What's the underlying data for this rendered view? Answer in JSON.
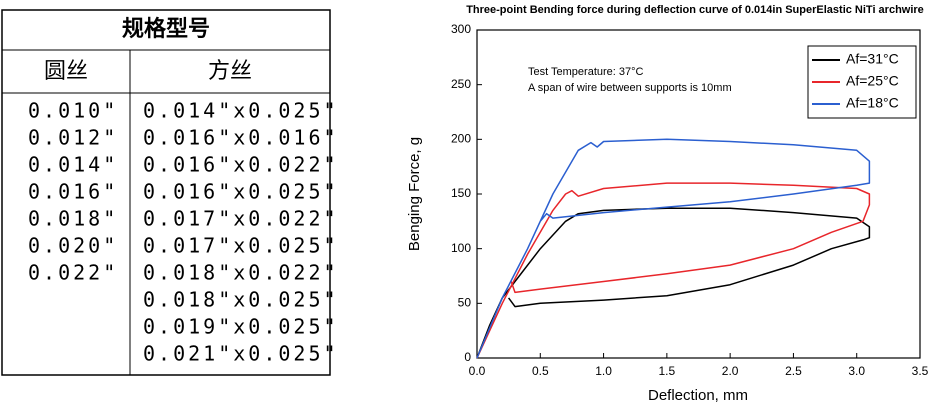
{
  "table": {
    "header": "规格型号",
    "columns": [
      "圆丝",
      "方丝"
    ],
    "round": [
      "0.010\"",
      "0.012\"",
      "0.014\"",
      "0.016\"",
      "0.018\"",
      "0.020\"",
      "0.022\""
    ],
    "square": [
      "0.014\"x0.025\"",
      "0.016\"x0.016\"",
      "0.016\"x0.022\"",
      "0.016\"x0.025\"",
      "0.017\"x0.022\"",
      "0.017\"x0.025\"",
      "0.018\"x0.022\"",
      "0.018\"x0.025\"",
      "0.019\"x0.025\"",
      "0.021\"x0.025\""
    ]
  },
  "chart_data": {
    "type": "line",
    "title": "Three-point Bending force during deflection curve of  0.014in SuperElastic NiTi archwire",
    "x_label": "Deflection, mm",
    "y_label": "Benging Force, g",
    "annotations": [
      "Test Temperature: 37°C",
      "A span of wire between supports is 10mm"
    ],
    "xlim": [
      0,
      3.5
    ],
    "ylim": [
      0,
      300
    ],
    "xticks": [
      {
        "value": 0,
        "label": "0.0"
      },
      0.5,
      {
        "value": 1,
        "label": "1.0"
      },
      1.5,
      {
        "value": 2,
        "label": "2.0"
      },
      2.5,
      {
        "value": 3,
        "label": "3.0"
      },
      3.5
    ],
    "yticks": [
      0,
      50,
      100,
      150,
      200,
      250,
      300
    ],
    "legend": "upper right",
    "series": [
      {
        "name": "Af=31°C",
        "color": "#000000",
        "x": [
          0,
          0.1,
          0.2,
          0.3,
          0.5,
          0.7,
          0.8,
          1.0,
          1.5,
          2.0,
          2.5,
          3.0,
          3.1,
          3.1,
          3.05,
          2.8,
          2.5,
          2.0,
          1.5,
          1.0,
          0.5,
          0.3,
          0.25
        ],
        "values": [
          0,
          30,
          55,
          70,
          100,
          125,
          132,
          135,
          137,
          137,
          133,
          128,
          120,
          110,
          108,
          100,
          85,
          67,
          57,
          53,
          50,
          47,
          55
        ]
      },
      {
        "name": "Af=25°C",
        "color": "#e8262b",
        "x": [
          0,
          0.2,
          0.4,
          0.6,
          0.7,
          0.75,
          0.8,
          1.0,
          1.5,
          2.0,
          2.5,
          3.0,
          3.1,
          3.1,
          3.05,
          2.8,
          2.5,
          2.0,
          1.5,
          1.0,
          0.5,
          0.3,
          0.27
        ],
        "values": [
          0,
          50,
          95,
          135,
          150,
          153,
          148,
          155,
          160,
          160,
          158,
          155,
          150,
          140,
          125,
          115,
          100,
          85,
          77,
          70,
          63,
          60,
          70
        ]
      },
      {
        "name": "Af=18°C",
        "color": "#2b5fd0",
        "x": [
          0,
          0.2,
          0.4,
          0.6,
          0.8,
          0.9,
          0.95,
          1.0,
          1.5,
          2.0,
          2.5,
          3.0,
          3.1,
          3.1,
          3.0,
          2.5,
          2.0,
          1.5,
          1.0,
          0.6,
          0.55,
          0.5
        ],
        "values": [
          0,
          55,
          100,
          150,
          190,
          197,
          193,
          198,
          200,
          198,
          195,
          190,
          180,
          160,
          158,
          150,
          143,
          138,
          133,
          128,
          132,
          125
        ]
      }
    ]
  }
}
